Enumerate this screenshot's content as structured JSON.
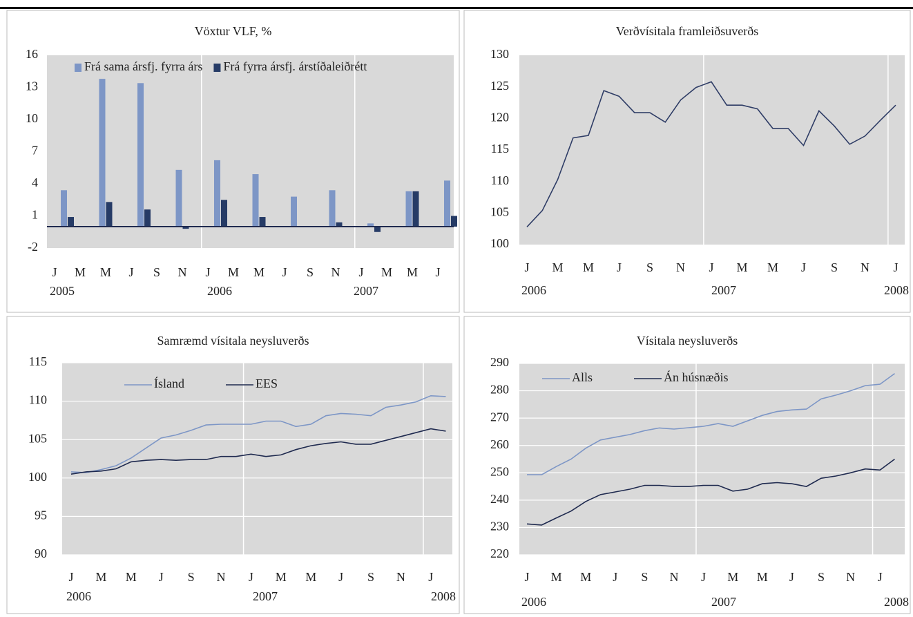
{
  "chart_data": [
    {
      "type": "bar",
      "title": "Vöxtur VLF, %",
      "categories": [
        null,
        null,
        null,
        null,
        null,
        null,
        null,
        null,
        null,
        null,
        null
      ],
      "month_ticks": [
        "J",
        "M",
        "M",
        "J",
        "S",
        "N",
        "J",
        "M",
        "M",
        "J",
        "S",
        "N",
        "J",
        "M",
        "M",
        "J"
      ],
      "year_labels": [
        "2005",
        "2006",
        "2007"
      ],
      "series": [
        {
          "name": "Frá sama ársfj. fyrra árs",
          "color": "#7d96c6",
          "values": [
            3.4,
            13.8,
            13.4,
            5.3,
            6.2,
            4.9,
            2.8,
            3.4,
            0.3,
            3.3,
            4.3
          ]
        },
        {
          "name": "Frá fyrra ársfj. árstíðaleiðrétt",
          "color": "#263b66",
          "values": [
            0.9,
            2.3,
            1.6,
            -0.2,
            2.5,
            0.9,
            null,
            0.4,
            -0.5,
            3.3,
            1.0
          ]
        }
      ],
      "ylim": [
        -2,
        16
      ],
      "yticks": [
        -2,
        1,
        4,
        7,
        10,
        13,
        16
      ],
      "grid": false
    },
    {
      "type": "line",
      "title": "Verðvísitala framleiðsuverðs",
      "categories": [
        "J",
        null,
        "M",
        null,
        "M",
        null,
        "J",
        null,
        "S",
        null,
        "N",
        null,
        "J",
        null,
        "M",
        null,
        "M",
        null,
        "J",
        null,
        "S",
        null,
        "N",
        null,
        "J"
      ],
      "year_labels": [
        "2006",
        "2007",
        "2008"
      ],
      "series": [
        {
          "color": "#2f3d66",
          "values": [
            102.8,
            105.4,
            110.3,
            116.9,
            117.3,
            124.4,
            123.5,
            120.9,
            120.9,
            119.4,
            122.9,
            124.9,
            125.8,
            122.1,
            122.1,
            121.5,
            118.4,
            118.4,
            115.7,
            121.2,
            118.8,
            115.9,
            117.2,
            119.7,
            122.1
          ]
        }
      ],
      "ylim": [
        100,
        130
      ],
      "yticks": [
        100,
        105,
        110,
        115,
        120,
        125,
        130
      ],
      "grid": false
    },
    {
      "type": "line",
      "title": "Samræmd vísitala neysluverðs",
      "categories": [
        "J",
        null,
        "M",
        null,
        "M",
        null,
        "J",
        null,
        "S",
        null,
        "N",
        null,
        "J",
        null,
        "M",
        null,
        "M",
        null,
        "J",
        null,
        "S",
        null,
        "N",
        null,
        "J",
        null
      ],
      "year_labels": [
        "2006",
        "2007",
        "2008"
      ],
      "series": [
        {
          "name": "Ísland",
          "color": "#7d96c6",
          "values": [
            100.8,
            100.7,
            101.1,
            101.6,
            102.6,
            103.9,
            105.2,
            105.6,
            106.2,
            106.9,
            107.0,
            107.0,
            107.0,
            107.4,
            107.4,
            106.7,
            107.0,
            108.1,
            108.4,
            108.3,
            108.1,
            109.2,
            109.5,
            109.9,
            110.7,
            110.6
          ]
        },
        {
          "name": "EES",
          "color": "#1f2a4f",
          "values": [
            100.5,
            100.8,
            100.9,
            101.2,
            102.1,
            102.3,
            102.4,
            102.3,
            102.4,
            102.4,
            102.8,
            102.8,
            103.1,
            102.8,
            103.0,
            103.7,
            104.2,
            104.5,
            104.7,
            104.4,
            104.4,
            104.9,
            105.4,
            105.9,
            106.4,
            106.1
          ]
        }
      ],
      "ylim": [
        90,
        115
      ],
      "yticks": [
        90,
        95,
        100,
        105,
        110,
        115
      ],
      "grid": true
    },
    {
      "type": "line",
      "title": "Vísitala neysluverðs",
      "categories": [
        "J",
        null,
        "M",
        null,
        "M",
        null,
        "J",
        null,
        "S",
        null,
        "N",
        null,
        "J",
        null,
        "M",
        null,
        "M",
        null,
        "J",
        null,
        "S",
        null,
        "N",
        null,
        "J",
        null
      ],
      "year_labels": [
        "2006",
        "2007",
        "2008"
      ],
      "series": [
        {
          "name": "Alls",
          "color": "#7d96c6",
          "values": [
            249.3,
            249.3,
            252.3,
            255.0,
            259.0,
            262.0,
            263.0,
            264.0,
            265.4,
            266.4,
            266.0,
            266.5,
            267.0,
            268.0,
            267.0,
            269.0,
            271.0,
            272.4,
            273.0,
            273.3,
            277.0,
            278.4,
            280.0,
            281.9,
            282.4,
            286.3
          ]
        },
        {
          "name": "Án húsnæðis",
          "color": "#1f2a4f",
          "values": [
            231.3,
            230.9,
            233.5,
            236.0,
            239.5,
            242.0,
            243.0,
            244.0,
            245.4,
            245.4,
            245.0,
            245.0,
            245.4,
            245.4,
            243.3,
            244.0,
            246.0,
            246.4,
            246.0,
            245.0,
            248.0,
            248.8,
            250.0,
            251.4,
            251.0,
            255.0
          ]
        }
      ],
      "ylim": [
        220,
        290
      ],
      "yticks": [
        220,
        230,
        240,
        250,
        260,
        270,
        280,
        290
      ],
      "grid": true
    }
  ]
}
